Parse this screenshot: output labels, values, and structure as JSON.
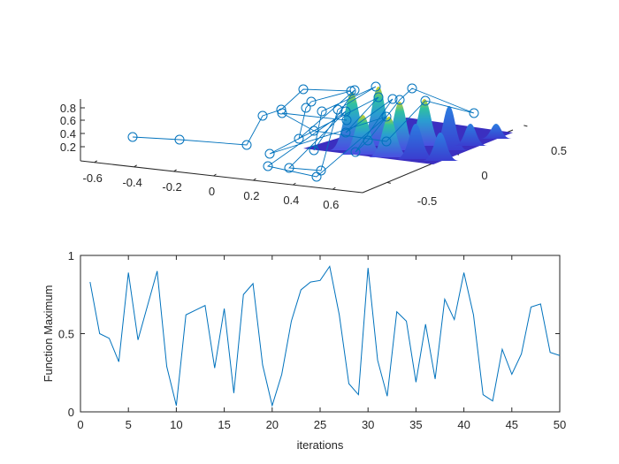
{
  "colors": {
    "line": "#0072BD",
    "axis": "#262626",
    "surface_low": "#3e26a8",
    "surface_mid": "#2eb7a4",
    "surface_high": "#f9fb0e"
  },
  "chart_data": [
    {
      "type": "surface+scatter3d",
      "zticks": [
        "0.2",
        "0.4",
        "0.6",
        "0.8"
      ],
      "xticks": [
        "-0.6",
        "-0.4",
        "-0.2",
        "0",
        "0.2",
        "0.4",
        "0.6"
      ],
      "yticks": [
        "-0.5",
        "0",
        "0.5"
      ],
      "marker": "circle",
      "grid": false
    },
    {
      "type": "line",
      "xlabel": "iterations",
      "ylabel": "Function Maximum",
      "xlim": [
        0,
        50
      ],
      "ylim": [
        0,
        1
      ],
      "xticks": [
        "0",
        "5",
        "10",
        "15",
        "20",
        "25",
        "30",
        "35",
        "40",
        "45",
        "50"
      ],
      "yticks": [
        "0",
        "0.5",
        "1"
      ],
      "grid": false,
      "x": [
        1,
        2,
        3,
        4,
        5,
        6,
        7,
        8,
        9,
        10,
        11,
        12,
        13,
        14,
        15,
        16,
        17,
        18,
        19,
        20,
        21,
        22,
        23,
        24,
        25,
        26,
        27,
        28,
        29,
        30,
        31,
        32,
        33,
        34,
        35,
        36,
        37,
        38,
        39,
        40,
        41,
        42,
        43,
        44,
        45,
        46,
        47,
        48,
        49,
        50
      ],
      "y": [
        0.83,
        0.5,
        0.47,
        0.32,
        0.89,
        0.46,
        0.68,
        0.9,
        0.29,
        0.04,
        0.62,
        0.65,
        0.68,
        0.28,
        0.66,
        0.12,
        0.75,
        0.82,
        0.3,
        0.04,
        0.24,
        0.58,
        0.78,
        0.83,
        0.84,
        0.93,
        0.62,
        0.18,
        0.11,
        0.92,
        0.33,
        0.1,
        0.64,
        0.58,
        0.19,
        0.56,
        0.21,
        0.72,
        0.59,
        0.89,
        0.62,
        0.11,
        0.07,
        0.4,
        0.24,
        0.37,
        0.67,
        0.69,
        0.38,
        0.36
      ]
    }
  ]
}
